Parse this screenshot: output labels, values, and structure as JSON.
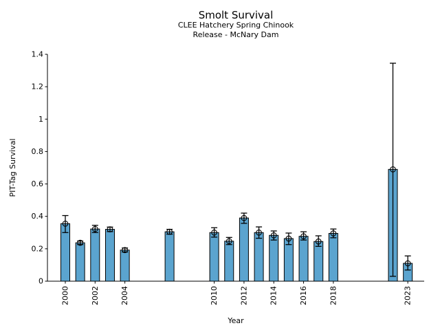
{
  "chart_data": {
    "type": "bar",
    "title": "Smolt Survival",
    "subtitle1": "CLEE Hatchery Spring Chinook",
    "subtitle2": "Release - McNary Dam",
    "xlabel": "Year",
    "ylabel": "PIT-Tag Survival",
    "xlim": [
      1998.8,
      2024.1
    ],
    "ylim": [
      0,
      1.4
    ],
    "grid": false,
    "legend": false,
    "background_color": "#ffffff",
    "bar_color": "#5BA4CF",
    "bar_edge_color": "#000000",
    "errorbar_color": "#000000",
    "text_color": "#000000",
    "marker_style": "open-circle",
    "xtick_years": [
      2000,
      2002,
      2004,
      2010,
      2012,
      2014,
      2016,
      2018,
      2023
    ],
    "xticks": [
      "2000",
      "2002",
      "2004",
      "2010",
      "2012",
      "2014",
      "2016",
      "2018",
      "2023"
    ],
    "yticks": [
      0,
      0.2,
      0.4,
      0.6,
      0.8,
      1.0,
      1.2,
      1.4
    ],
    "ytick_labels": [
      "0",
      "0.2",
      "0.4",
      "0.6",
      "0.8",
      "1",
      "1.2",
      "1.4"
    ],
    "series": [
      {
        "name": "PIT-Tag Survival",
        "x": [
          2000,
          2001,
          2002,
          2003,
          2004,
          2007,
          2010,
          2011,
          2012,
          2013,
          2014,
          2015,
          2016,
          2017,
          2018,
          2022,
          2023
        ],
        "values": [
          0.355,
          0.237,
          0.322,
          0.32,
          0.192,
          0.305,
          0.3,
          0.247,
          0.39,
          0.3,
          0.283,
          0.263,
          0.277,
          0.245,
          0.295,
          0.69,
          0.11
        ],
        "ci_low": [
          0.3,
          0.226,
          0.3,
          0.306,
          0.18,
          0.29,
          0.272,
          0.226,
          0.357,
          0.265,
          0.254,
          0.226,
          0.254,
          0.215,
          0.268,
          0.03,
          0.069
        ],
        "ci_high": [
          0.405,
          0.248,
          0.345,
          0.334,
          0.205,
          0.32,
          0.33,
          0.27,
          0.42,
          0.335,
          0.31,
          0.297,
          0.305,
          0.28,
          0.322,
          1.345,
          0.156
        ]
      }
    ]
  }
}
